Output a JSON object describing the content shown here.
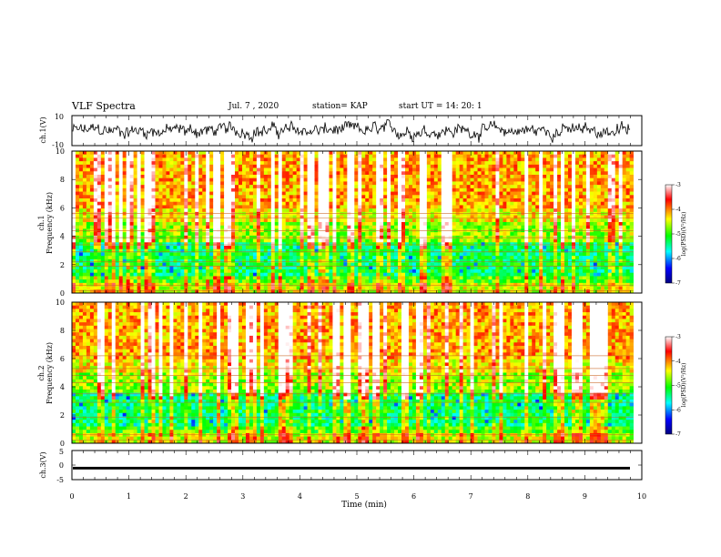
{
  "header": {
    "title": "VLF Spectra",
    "date": "Jul. 7 , 2020",
    "station": "station= KAP",
    "start": "start UT = 14: 20: 1"
  },
  "chart_data": [
    {
      "type": "line",
      "name": "ch1-waveform",
      "ylabel": "ch.1(V)",
      "ylim": [
        -10,
        10
      ],
      "yticks": [
        "10",
        "-10"
      ],
      "xlim": [
        0,
        10
      ],
      "trace": "continuous noisy waveform roughly between -6 and 6 V, centred near 0"
    },
    {
      "type": "heatmap",
      "name": "ch1-spectrogram",
      "ylabel_line1": "ch.1",
      "ylabel_line2": "Frequency (kHz)",
      "ylim": [
        0,
        10
      ],
      "yticks": [
        "0",
        "2",
        "4",
        "6",
        "8",
        "10"
      ],
      "xlim": [
        0,
        9.85
      ],
      "colorbar": {
        "label": "log(PSD)(V²/Hz)",
        "range": [
          -7,
          -3
        ],
        "ticks": [
          "-3",
          "-4",
          "-5",
          "-6",
          "-7"
        ],
        "colors": [
          "#000080",
          "#0000ff",
          "#00ffff",
          "#00ff00",
          "#ffff00",
          "#ff0000",
          "#ffffff"
        ]
      }
    },
    {
      "type": "heatmap",
      "name": "ch2-spectrogram",
      "ylabel_line1": "ch.2",
      "ylabel_line2": "Frequency (kHz)",
      "ylim": [
        0,
        10
      ],
      "yticks": [
        "0",
        "2",
        "4",
        "6",
        "8",
        "10"
      ],
      "xlim": [
        0,
        9.85
      ],
      "colorbar": {
        "label": "log(PSD)(V²/Hz)",
        "range": [
          -7,
          -3
        ],
        "ticks": [
          "-3",
          "-4",
          "-5",
          "-6",
          "-7"
        ],
        "colors": [
          "#000080",
          "#0000ff",
          "#00ffff",
          "#00ff00",
          "#ffff00",
          "#ff0000",
          "#ffffff"
        ]
      }
    },
    {
      "type": "line",
      "name": "ch3-waveform",
      "ylabel": "ch.3(V)",
      "ylim": [
        -5,
        5
      ],
      "yticks": [
        "5",
        "0",
        "-5"
      ],
      "xlim": [
        0,
        10
      ],
      "trace": "flat dense trace near -1 V"
    }
  ],
  "xaxis": {
    "label": "Time (min)",
    "range": [
      0,
      10
    ],
    "ticks": [
      "0",
      "1",
      "2",
      "3",
      "4",
      "5",
      "6",
      "7",
      "8",
      "9",
      "10"
    ]
  }
}
